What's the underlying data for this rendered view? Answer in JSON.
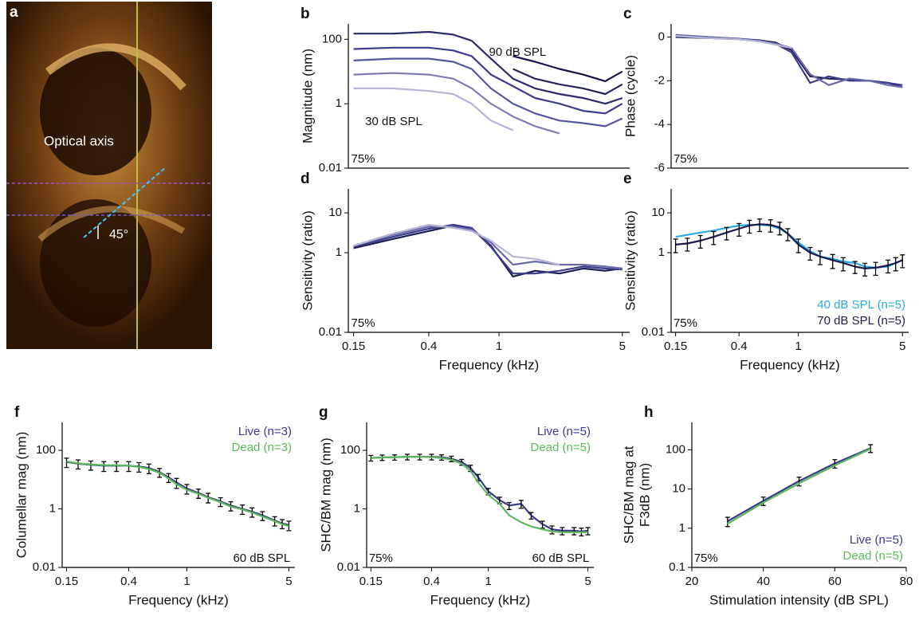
{
  "image": {
    "panel": "a",
    "labels": [
      "Optical axis",
      "45°"
    ]
  },
  "chart_data": [
    {
      "type": "line",
      "panel": "b",
      "ylabel": "Magnitude (nm)",
      "log_x": true,
      "log_y": true,
      "x": [
        0.15,
        0.25,
        0.4,
        0.55,
        0.7,
        0.9,
        1.2,
        1.6,
        2.2,
        3,
        4,
        5
      ],
      "xlim": [
        0.14,
        5.5
      ],
      "ylim": [
        0.01,
        300
      ],
      "yticks": [
        0.01,
        1,
        100
      ],
      "annotations": [
        "90 dB SPL",
        "30 dB SPL",
        "75%"
      ],
      "series": [
        {
          "color": "#2b2b6b",
          "values": [
            150,
            150,
            170,
            140,
            90,
            25,
            6,
            3,
            2,
            1.5,
            1,
            1.5
          ]
        },
        {
          "color": "#3b3d8a",
          "values": [
            50,
            55,
            55,
            45,
            30,
            8,
            3.5,
            1.5,
            1,
            0.6,
            0.5,
            1
          ]
        },
        {
          "color": "#5556a0",
          "values": [
            22,
            25,
            25,
            20,
            12,
            3,
            1,
            0.5,
            0.3,
            0.25,
            0.2,
            0.35
          ]
        },
        {
          "color": "#7d7db5",
          "values": [
            8,
            9,
            8,
            6,
            3,
            1,
            0.4,
            0.2,
            0.12,
            null,
            null,
            null
          ]
        },
        {
          "color": "#b5b5d5",
          "values": [
            3,
            3,
            2.5,
            2,
            1,
            0.3,
            0.15,
            null,
            null,
            null,
            null,
            null
          ]
        },
        {
          "color": "#25255e",
          "values": [
            null,
            null,
            null,
            null,
            null,
            null,
            12,
            6,
            4,
            3,
            2,
            4
          ]
        },
        {
          "color": "#15154a",
          "values": [
            null,
            null,
            null,
            null,
            null,
            null,
            30,
            20,
            12,
            8,
            5,
            10
          ]
        }
      ]
    },
    {
      "type": "line",
      "panel": "c",
      "ylabel": "Phase (cycle)",
      "log_x": true,
      "log_y": false,
      "x": [
        0.15,
        0.25,
        0.4,
        0.55,
        0.7,
        0.9,
        1.2,
        1.6,
        2.2,
        3,
        4,
        5
      ],
      "xlim": [
        0.14,
        5.5
      ],
      "ylim": [
        -6,
        0.6
      ],
      "yticks": [
        0,
        -2,
        -4,
        -6
      ],
      "annotations": [
        "75%"
      ],
      "series": [
        {
          "color": "#1e1e55",
          "values": [
            0,
            -0.05,
            -0.1,
            -0.15,
            -0.25,
            -0.6,
            -1.8,
            -1.9,
            -1.95,
            -2,
            -2.1,
            -2.3
          ]
        },
        {
          "color": "#3b3d8a",
          "values": [
            0.05,
            0,
            -0.08,
            -0.15,
            -0.3,
            -0.7,
            -2.1,
            -1.8,
            -2,
            -2,
            -2.1,
            -2.2
          ]
        },
        {
          "color": "#6a6aa8",
          "values": [
            0.1,
            0,
            -0.1,
            -0.2,
            -0.3,
            -0.5,
            -1.7,
            -2.2,
            -1.9,
            -2,
            -2.2,
            -2.3
          ]
        },
        {
          "color": "#b5b5d5",
          "values": [
            0.05,
            -0.05,
            -0.1,
            -0.2,
            -0.35,
            -0.5,
            null,
            null,
            null,
            null,
            null,
            null
          ]
        }
      ]
    },
    {
      "type": "line",
      "panel": "d",
      "ylabel": "Sensitivity (ratio)",
      "xlabel": "Frequency (kHz)",
      "log_x": true,
      "log_y": true,
      "x": [
        0.15,
        0.25,
        0.4,
        0.55,
        0.7,
        0.9,
        1.2,
        1.6,
        2.2,
        3,
        4,
        5
      ],
      "xlim": [
        0.14,
        5.5
      ],
      "xticks": [
        0.15,
        0.4,
        1,
        5
      ],
      "ylim": [
        0.01,
        40
      ],
      "yticks": [
        0.01,
        1,
        10
      ],
      "annotations": [
        "75%"
      ],
      "series": [
        {
          "color": "#1e1e55",
          "values": [
            1.3,
            2.2,
            3.5,
            4.8,
            4,
            1.5,
            0.25,
            0.35,
            0.3,
            0.4,
            0.35,
            0.4
          ]
        },
        {
          "color": "#3b3d8a",
          "values": [
            1.4,
            2.5,
            4,
            5,
            4.2,
            1.4,
            0.3,
            0.3,
            0.35,
            0.45,
            0.4,
            0.38
          ]
        },
        {
          "color": "#6a6aa8",
          "values": [
            1.5,
            2.8,
            4.5,
            4.5,
            3.8,
            1.8,
            0.5,
            0.6,
            0.5,
            0.5,
            0.45,
            0.4
          ]
        },
        {
          "color": "#b5b5d5",
          "values": [
            1.5,
            3,
            5,
            4.2,
            3.5,
            2,
            0.8,
            0.7,
            0.5,
            null,
            null,
            null
          ]
        }
      ]
    },
    {
      "type": "line",
      "panel": "e",
      "ylabel": "Sensitivity (ratio)",
      "xlabel": "Frequency (kHz)",
      "log_x": true,
      "log_y": true,
      "x": [
        0.15,
        0.18,
        0.22,
        0.27,
        0.33,
        0.4,
        0.47,
        0.55,
        0.65,
        0.75,
        0.85,
        1,
        1.2,
        1.4,
        1.7,
        2,
        2.4,
        2.8,
        3.3,
        4,
        4.5,
        5
      ],
      "xlim": [
        0.14,
        5.5
      ],
      "xticks": [
        0.15,
        0.4,
        1,
        5
      ],
      "ylim": [
        0.01,
        40
      ],
      "yticks": [
        0.01,
        1,
        10
      ],
      "annotations": [
        "75%"
      ],
      "legend": "lower right",
      "series": [
        {
          "name": "40 dB SPL (n=5)",
          "color": "#29abe2",
          "values": [
            2.5,
            2.8,
            3.2,
            3.6,
            4.2,
            4.8,
            5,
            5,
            4.8,
            4,
            3,
            1.8,
            1.1,
            0.8,
            0.7,
            0.6,
            0.55,
            0.45,
            0.42,
            0.45,
            0.55,
            0.65
          ]
        },
        {
          "name": "70 dB SPL (n=5)",
          "color": "#1c1c50",
          "values": [
            1.6,
            1.7,
            2,
            2.5,
            3.2,
            4,
            4.8,
            5.2,
            5,
            4.3,
            3,
            1.6,
            1,
            0.8,
            0.65,
            0.55,
            0.45,
            0.4,
            0.42,
            0.48,
            0.55,
            0.65
          ],
          "errors": [
            0.6,
            0.6,
            0.7,
            0.9,
            1.1,
            1.4,
            1.7,
            1.8,
            1.7,
            1.5,
            1,
            0.6,
            0.35,
            0.3,
            0.25,
            0.2,
            0.15,
            0.14,
            0.15,
            0.17,
            0.2,
            0.23
          ]
        }
      ]
    },
    {
      "type": "line",
      "panel": "f",
      "ylabel": "Columellar mag (nm)",
      "xlabel": "Frequency (kHz)",
      "log_x": true,
      "log_y": true,
      "x": [
        0.15,
        0.18,
        0.22,
        0.27,
        0.33,
        0.4,
        0.47,
        0.55,
        0.65,
        0.75,
        0.85,
        1,
        1.2,
        1.4,
        1.7,
        2,
        2.4,
        2.8,
        3.3,
        4,
        4.5,
        5
      ],
      "xlim": [
        0.14,
        5.5
      ],
      "xticks": [
        0.15,
        0.4,
        1,
        5
      ],
      "ylim": [
        0.01,
        900
      ],
      "yticks": [
        0.01,
        1,
        100
      ],
      "annotations": [
        "60 dB SPL"
      ],
      "legend": "upper right",
      "series": [
        {
          "name": "Live (n=3)",
          "color": "#3a3a8c",
          "values": [
            40,
            35,
            32,
            30,
            30,
            30,
            28,
            25,
            18,
            12,
            8,
            5,
            3.5,
            2.5,
            1.8,
            1.3,
            1,
            0.8,
            0.6,
            0.4,
            0.32,
            0.28
          ],
          "errors": [
            14,
            12,
            11,
            11,
            11,
            11,
            10,
            9,
            6,
            4,
            3,
            1.8,
            1.2,
            0.9,
            0.6,
            0.45,
            0.35,
            0.28,
            0.2,
            0.14,
            0.11,
            0.1
          ]
        },
        {
          "name": "Dead (n=3)",
          "color": "#5cb85c",
          "values": [
            42,
            36,
            33,
            31,
            31,
            30,
            27,
            23,
            17,
            11,
            7,
            4.5,
            3.3,
            2.4,
            1.7,
            1.2,
            0.95,
            0.75,
            0.55,
            0.38,
            0.3,
            0.26
          ]
        }
      ]
    },
    {
      "type": "line",
      "panel": "g",
      "ylabel": "SHC/BM mag (nm)",
      "xlabel": "Frequency (kHz)",
      "log_x": true,
      "log_y": true,
      "x": [
        0.15,
        0.18,
        0.22,
        0.27,
        0.33,
        0.4,
        0.47,
        0.55,
        0.65,
        0.75,
        0.85,
        1,
        1.2,
        1.4,
        1.7,
        2,
        2.4,
        2.8,
        3.3,
        4,
        4.5,
        5
      ],
      "xlim": [
        0.14,
        5.5
      ],
      "xticks": [
        0.15,
        0.4,
        1,
        5
      ],
      "ylim": [
        0.01,
        900
      ],
      "yticks": [
        0.01,
        1,
        100
      ],
      "annotations": [
        "75%",
        "60 dB SPL"
      ],
      "legend": "upper right",
      "series": [
        {
          "name": "Live (n=5)",
          "color": "#3a3a8c",
          "values": [
            55,
            57,
            58,
            60,
            60,
            60,
            58,
            52,
            40,
            25,
            12,
            4,
            2,
            1.3,
            1.5,
            0.6,
            0.3,
            0.2,
            0.18,
            0.18,
            0.17,
            0.18
          ],
          "errors": [
            12,
            12,
            12,
            13,
            13,
            13,
            12,
            11,
            9,
            6,
            3,
            1,
            0.5,
            0.35,
            0.45,
            0.15,
            0.08,
            0.06,
            0.05,
            0.05,
            0.05,
            0.05
          ]
        },
        {
          "name": "Dead (n=5)",
          "color": "#5cb85c",
          "values": [
            55,
            57,
            58,
            60,
            60,
            58,
            55,
            48,
            35,
            20,
            8,
            3,
            1.5,
            0.6,
            0.35,
            0.25,
            0.2,
            0.17,
            0.16,
            0.16,
            0.16,
            0.16
          ]
        }
      ]
    },
    {
      "type": "line",
      "panel": "h",
      "ylabel": [
        "SHC/BM mag at",
        "F3dB (nm)"
      ],
      "xlabel": "Stimulation intensity (dB SPL)",
      "log_x": false,
      "log_y": true,
      "x": [
        30,
        40,
        50,
        60,
        70
      ],
      "xlim": [
        20,
        80
      ],
      "xticks": [
        20,
        40,
        60,
        80
      ],
      "ylim": [
        0.1,
        500
      ],
      "yticks": [
        0.1,
        1,
        10,
        100
      ],
      "annotations": [
        "75%"
      ],
      "legend": "lower right",
      "series": [
        {
          "name": "Live (n=5)",
          "color": "#3a3a8c",
          "values": [
            1.5,
            5,
            16,
            45,
            110
          ],
          "errors": [
            0.4,
            1.2,
            4,
            11,
            25
          ]
        },
        {
          "name": "Dead (n=5)",
          "color": "#5cb85c",
          "values": [
            1.3,
            4.5,
            14,
            40,
            105
          ]
        }
      ]
    }
  ]
}
